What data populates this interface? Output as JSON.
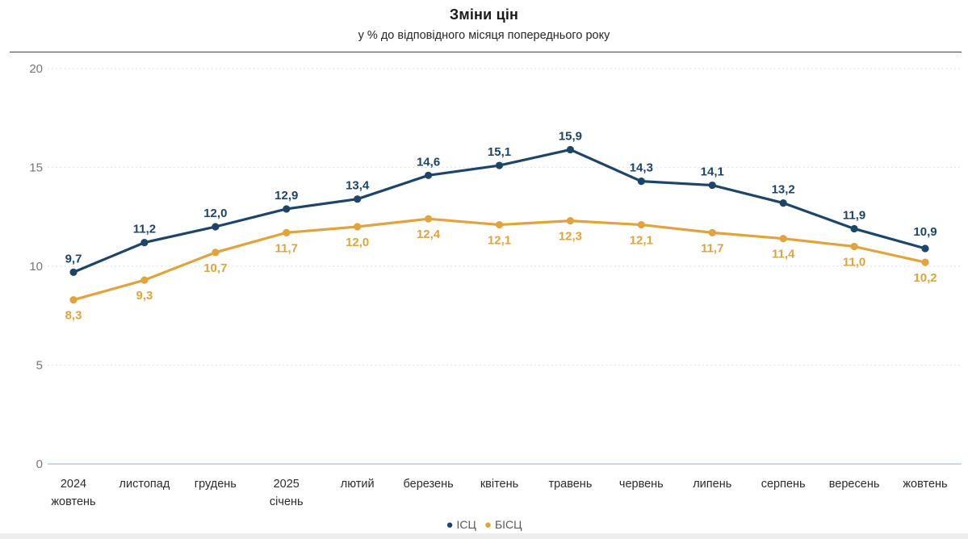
{
  "header": {
    "title": "Зміни цін",
    "subtitle": "у % до відповідного місяця попереднього року"
  },
  "chart_data": {
    "type": "line",
    "categories": [
      [
        "2024",
        "жовтень"
      ],
      [
        "листопад"
      ],
      [
        "грудень"
      ],
      [
        "2025",
        "січень"
      ],
      [
        "лютий"
      ],
      [
        "березень"
      ],
      [
        "квітень"
      ],
      [
        "травень"
      ],
      [
        "червень"
      ],
      [
        "липень"
      ],
      [
        "серпень"
      ],
      [
        "вересень"
      ],
      [
        "жовтень"
      ]
    ],
    "series": [
      {
        "name": "ІСЦ",
        "color": "#1d4568",
        "values": [
          9.7,
          11.2,
          12.0,
          12.9,
          13.4,
          14.6,
          15.1,
          15.9,
          14.3,
          14.1,
          13.2,
          11.9,
          10.9
        ],
        "label_position": "above"
      },
      {
        "name": "БІСЦ",
        "color": "#e1a33b",
        "values": [
          8.3,
          9.3,
          10.7,
          11.7,
          12.0,
          12.4,
          12.1,
          12.3,
          12.1,
          11.7,
          11.4,
          11.0,
          10.2
        ],
        "label_position": "below"
      }
    ],
    "title": "Зміни цін",
    "subtitle": "у % до відповідного місяця попереднього року",
    "xlabel": "",
    "ylabel": "",
    "ylim": [
      0,
      20
    ],
    "yticks": [
      0,
      5,
      10,
      15,
      20
    ],
    "grid": "horizontal-dotted",
    "decimal_separator": ",",
    "last_point_label_bold": true,
    "legend_position": "bottom-center"
  },
  "legend": {
    "items": [
      {
        "label": "ІСЦ",
        "color": "#1d4568"
      },
      {
        "label": "БІСЦ",
        "color": "#e1a33b"
      }
    ]
  }
}
